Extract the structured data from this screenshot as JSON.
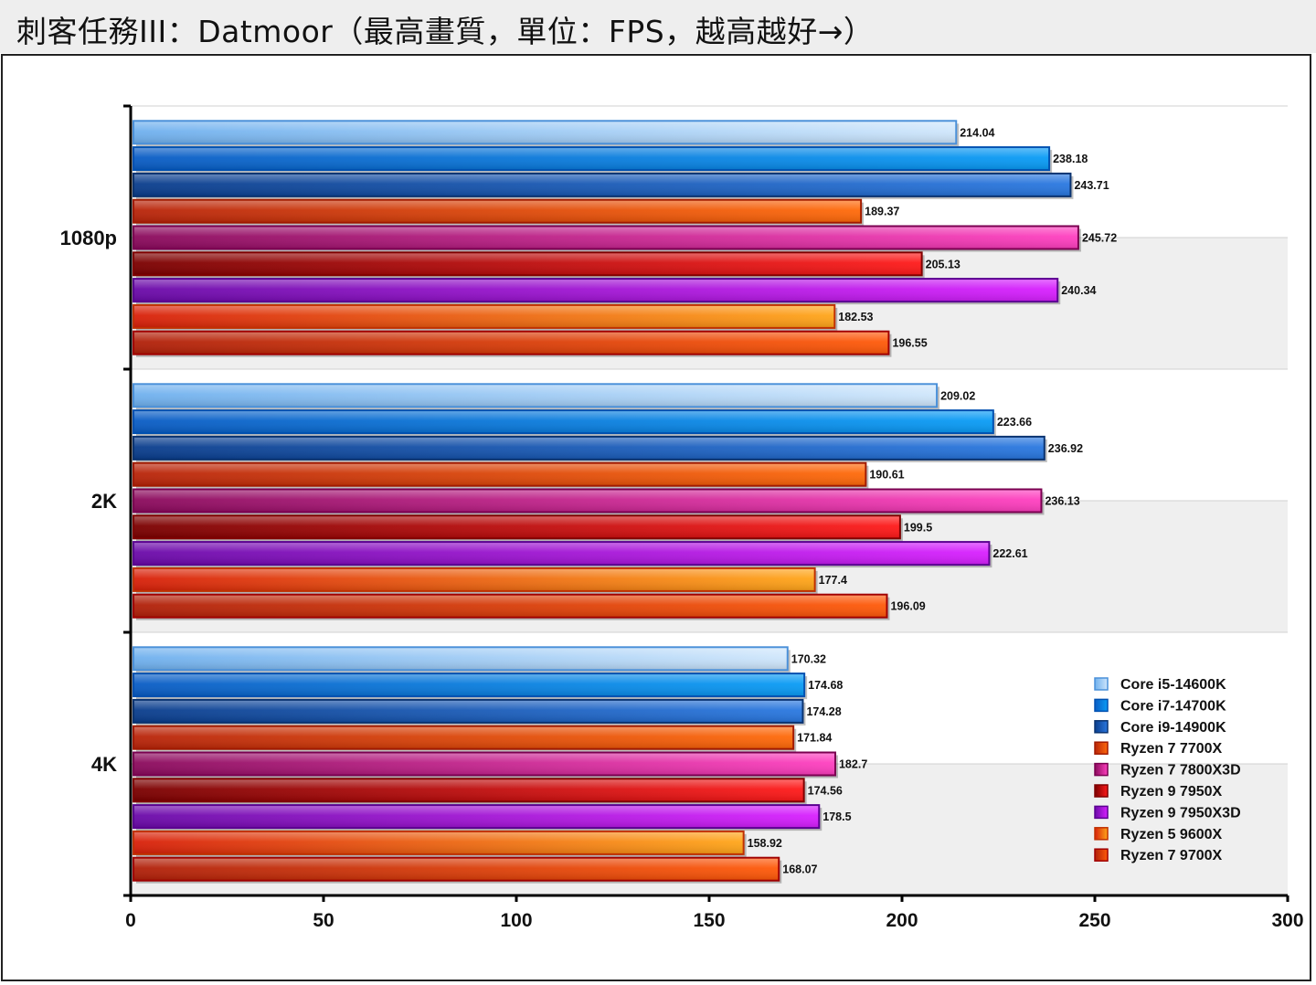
{
  "title": "刺客任務III：Datmoor（最高畫質，單位：FPS，越高越好→）",
  "chart_data": {
    "type": "bar",
    "orientation": "horizontal",
    "title": "刺客任務III：Datmoor（最高畫質，單位：FPS，越高越好→）",
    "xlabel": "",
    "ylabel": "",
    "xlim": [
      0,
      300
    ],
    "xticks": [
      "0",
      "50",
      "100",
      "150",
      "200",
      "250",
      "300"
    ],
    "grid": "horizontal category bands",
    "legend_position": "bottom-right",
    "categories": [
      "1080p",
      "2K",
      "4K"
    ],
    "series": [
      {
        "name": "Core i5-14600K",
        "values": [
          214.04,
          209.02,
          170.32
        ],
        "labels": [
          "214.04",
          "209.02",
          "170.32"
        ],
        "colors": [
          "#6fb0ee",
          "#cfe6fb"
        ],
        "edge": "#4a90d9"
      },
      {
        "name": "Core i7-14700K",
        "values": [
          238.18,
          223.66,
          174.68
        ],
        "labels": [
          "238.18",
          "223.66",
          "174.68"
        ],
        "colors": [
          "#0a5cc4",
          "#0a9cf5"
        ],
        "edge": "#0050b0"
      },
      {
        "name": "Core i9-14900K",
        "values": [
          243.71,
          236.92,
          174.28
        ],
        "labels": [
          "243.71",
          "236.92",
          "174.28"
        ],
        "colors": [
          "#0a3d8c",
          "#2a78e0"
        ],
        "edge": "#0a3370"
      },
      {
        "name": "Ryzen 7 7700X",
        "values": [
          189.37,
          190.61,
          171.84
        ],
        "labels": [
          "189.37",
          "190.61",
          "171.84"
        ],
        "colors": [
          "#b8240a",
          "#ff6a0a"
        ],
        "edge": "#a01a00"
      },
      {
        "name": "Ryzen 7 7800X3D",
        "values": [
          245.72,
          236.13,
          182.7
        ],
        "labels": [
          "245.72",
          "236.13",
          "182.7"
        ],
        "colors": [
          "#8a0a5c",
          "#ff40c0"
        ],
        "edge": "#7a0050"
      },
      {
        "name": "Ryzen 9 7950X",
        "values": [
          205.13,
          199.5,
          174.56
        ],
        "labels": [
          "205.13",
          "199.5",
          "174.56"
        ],
        "colors": [
          "#7a0000",
          "#ff1a1a"
        ],
        "edge": "#800000"
      },
      {
        "name": "Ryzen 9 7950X3D",
        "values": [
          240.34,
          222.61,
          178.5
        ],
        "labels": [
          "240.34",
          "222.61",
          "178.5"
        ],
        "colors": [
          "#6a0aa8",
          "#d820ff"
        ],
        "edge": "#5a0090"
      },
      {
        "name": "Ryzen 5 9600X",
        "values": [
          182.53,
          177.4,
          158.92
        ],
        "labels": [
          "182.53",
          "177.4",
          "158.92"
        ],
        "colors": [
          "#d8200a",
          "#ffa61a"
        ],
        "edge": "#c03000"
      },
      {
        "name": "Ryzen 7 9700X",
        "values": [
          196.55,
          196.09,
          168.07
        ],
        "labels": [
          "196.55",
          "196.09",
          "168.07"
        ],
        "colors": [
          "#b0200a",
          "#ff5a0a"
        ],
        "edge": "#a00000"
      }
    ]
  }
}
